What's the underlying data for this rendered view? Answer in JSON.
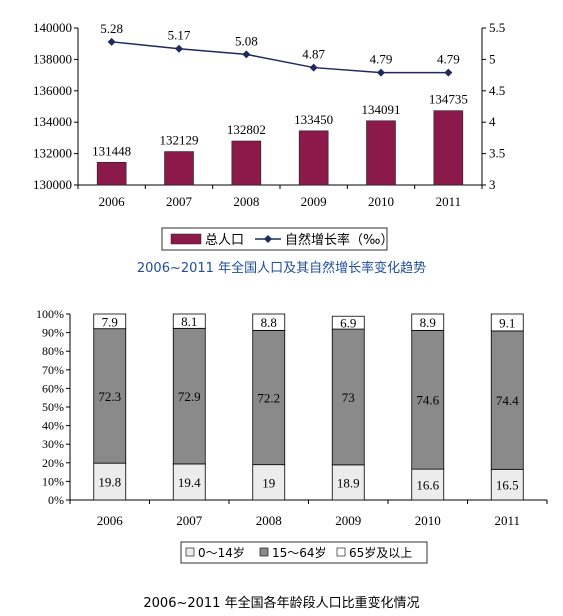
{
  "chart_data": [
    {
      "type": "bar+line",
      "categories": [
        "2006",
        "2007",
        "2008",
        "2009",
        "2010",
        "2011"
      ],
      "series": [
        {
          "name": "总人口",
          "type": "bar",
          "axis": "left",
          "values": [
            131448,
            132129,
            132802,
            133450,
            134091,
            134735
          ]
        },
        {
          "name": "自然增长率（‰）",
          "type": "line",
          "axis": "right",
          "values": [
            5.28,
            5.17,
            5.08,
            4.87,
            4.79,
            4.79
          ]
        }
      ],
      "ylim_left": [
        130000,
        140000
      ],
      "yticks_left": [
        "130000",
        "132000",
        "134000",
        "136000",
        "138000",
        "140000"
      ],
      "ylim_right": [
        3,
        5.5
      ],
      "yticks_right": [
        "3",
        "3.5",
        "4",
        "4.5",
        "5",
        "5.5"
      ],
      "legend": "bottom",
      "grid": false,
      "caption": "2006~2011 年全国人口及其自然增长率变化趋势"
    },
    {
      "type": "bar",
      "stacked": true,
      "percent": true,
      "categories": [
        "2006",
        "2007",
        "2008",
        "2009",
        "2010",
        "2011"
      ],
      "series": [
        {
          "name": "0～14岁",
          "values": [
            19.8,
            19.4,
            19,
            18.9,
            16.6,
            16.5
          ]
        },
        {
          "name": "15～64岁",
          "values": [
            72.3,
            72.9,
            72.2,
            73,
            74.6,
            74.4
          ]
        },
        {
          "name": "65岁及以上",
          "values": [
            7.9,
            8.1,
            8.8,
            6.9,
            8.9,
            9.1
          ]
        }
      ],
      "yticks": [
        "0%",
        "10%",
        "20%",
        "30%",
        "40%",
        "50%",
        "60%",
        "70%",
        "80%",
        "90%",
        "100%"
      ],
      "ylim": [
        0,
        100
      ],
      "legend": "bottom",
      "grid": false,
      "caption": "2006~2011 年全国各年龄段人口比重变化情况"
    }
  ],
  "colors": {
    "bar1": "#8b1a4a",
    "line1": "#1f2a5c",
    "age0_14": "#ececec",
    "age15_64": "#8a8a8a",
    "age65": "#ffffff",
    "caption1": "#1f4e9c"
  }
}
